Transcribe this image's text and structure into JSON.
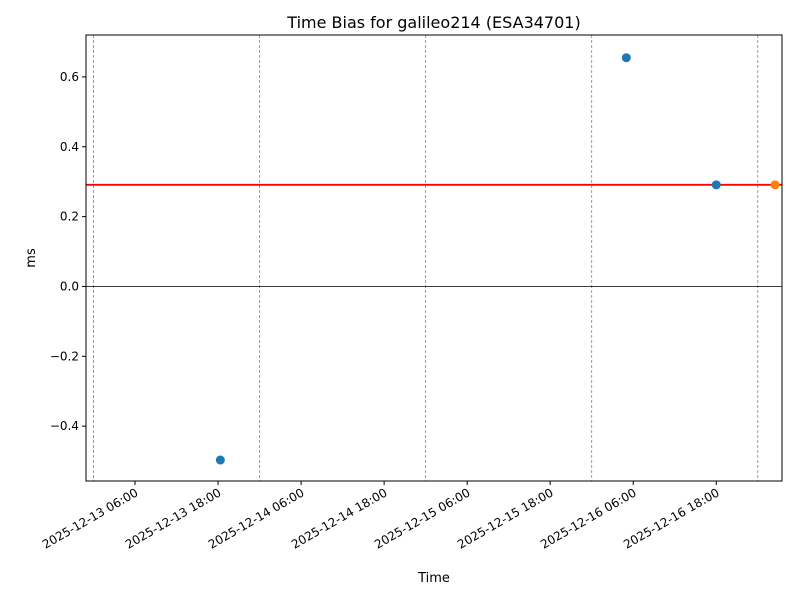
{
  "chart_data": {
    "type": "scatter",
    "title": "Time Bias for galileo214 (ESA34701)",
    "xlabel": "Time",
    "ylabel": "ms",
    "xlim": [
      "2025-12-12T22:55",
      "2025-12-17T03:30"
    ],
    "ylim": [
      -0.557,
      0.72
    ],
    "yticks": [
      -0.4,
      -0.2,
      0.0,
      0.2,
      0.4,
      0.6
    ],
    "ytick_labels": [
      "−0.4",
      "−0.2",
      "0.0",
      "0.2",
      "0.4",
      "0.6"
    ],
    "xticks": [
      "2025-12-13T06:00",
      "2025-12-13T18:00",
      "2025-12-14T06:00",
      "2025-12-14T18:00",
      "2025-12-15T06:00",
      "2025-12-15T18:00",
      "2025-12-16T06:00",
      "2025-12-16T18:00"
    ],
    "xtick_labels": [
      "2025-12-13 06:00",
      "2025-12-13 18:00",
      "2025-12-14 06:00",
      "2025-12-14 18:00",
      "2025-12-15 06:00",
      "2025-12-15 18:00",
      "2025-12-16 06:00",
      "2025-12-16 18:00"
    ],
    "grid": false,
    "day_separators": [
      "2025-12-13T00:00",
      "2025-12-14T00:00",
      "2025-12-15T00:00",
      "2025-12-16T00:00",
      "2025-12-17T00:00"
    ],
    "series": [
      {
        "color": "#1f77b4",
        "points": [
          {
            "x": "2025-12-13T18:20",
            "y": -0.497
          },
          {
            "x": "2025-12-16T05:00",
            "y": 0.655
          },
          {
            "x": "2025-12-16T18:00",
            "y": 0.291
          }
        ]
      },
      {
        "color": "#ff7f0e",
        "points": [
          {
            "x": "2025-12-17T02:30",
            "y": 0.291
          }
        ]
      }
    ],
    "hlines": [
      {
        "y": 0.291,
        "color": "#ff0000"
      },
      {
        "y": 0.0,
        "color": "#000000"
      }
    ],
    "separator_color": "#5b8fb9"
  }
}
